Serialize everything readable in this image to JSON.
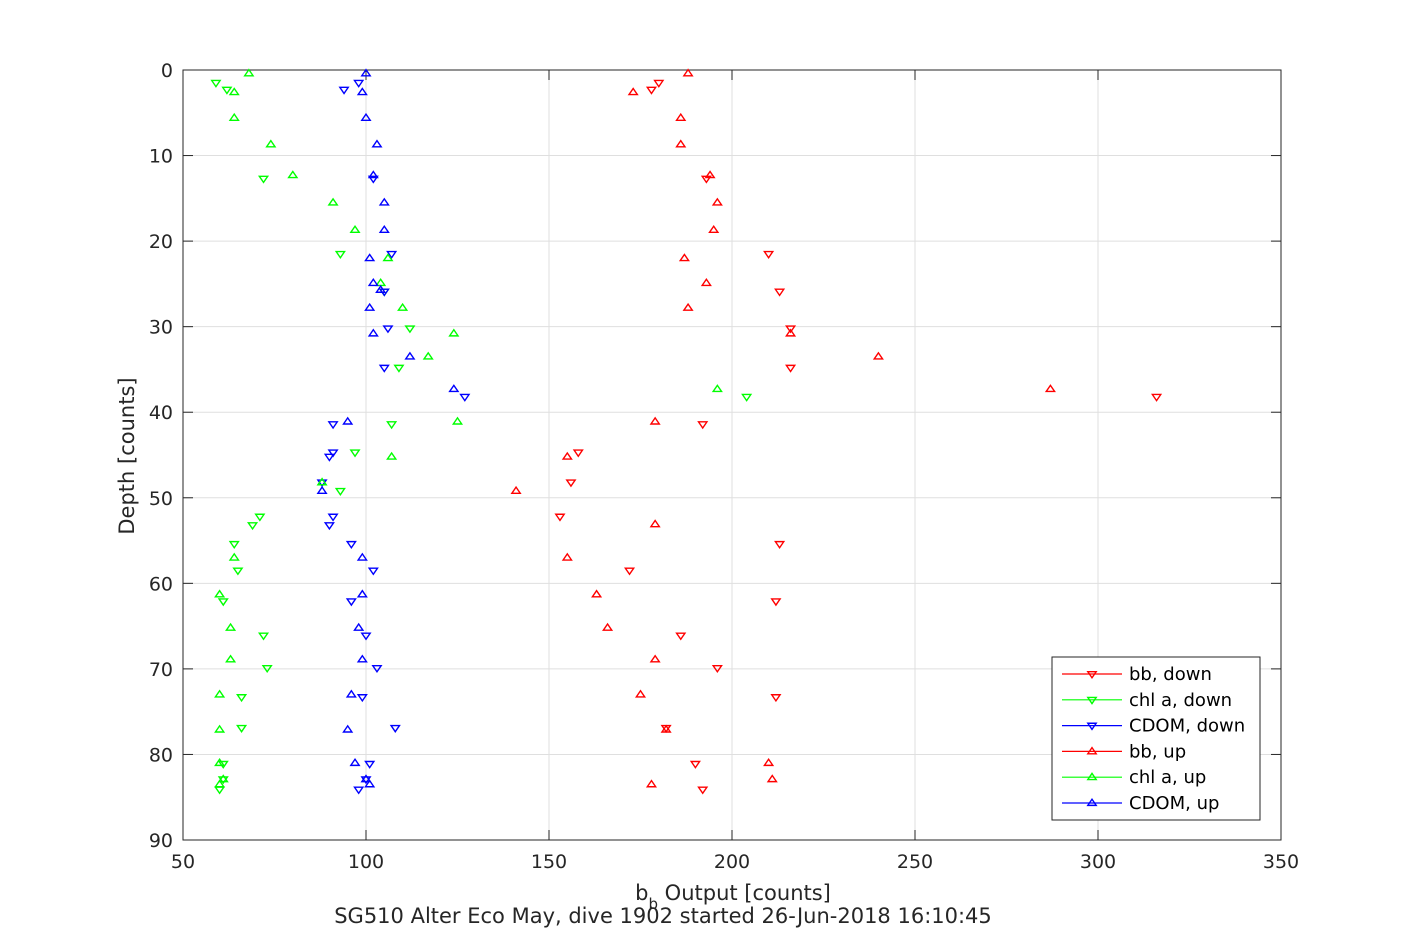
{
  "chart_data": {
    "type": "scatter",
    "title": "",
    "caption": "SG510 Alter Eco May, dive 1902 started 26-Jun-2018 16:10:45",
    "xlabel_main": "b",
    "xlabel_sub": "b",
    "xlabel_rest": " Output [counts]",
    "ylabel": "Depth [counts]",
    "xlim": [
      50,
      350
    ],
    "ylim": [
      0,
      90
    ],
    "y_reversed": true,
    "xticks": [
      50,
      100,
      150,
      200,
      250,
      300,
      350
    ],
    "yticks": [
      0,
      10,
      20,
      30,
      40,
      50,
      60,
      70,
      80,
      90
    ],
    "grid": true,
    "legend_position": "bottom-right",
    "series": [
      {
        "name": "bb, down",
        "color": "#ff0000",
        "marker": "triangle-down",
        "points": [
          [
            180,
            1.5
          ],
          [
            178,
            2.3
          ],
          [
            193,
            12.7
          ],
          [
            210,
            21.5
          ],
          [
            213,
            25.9
          ],
          [
            216,
            30.2
          ],
          [
            216,
            34.8
          ],
          [
            316,
            38.2
          ],
          [
            192,
            41.4
          ],
          [
            158,
            44.7
          ],
          [
            156,
            48.2
          ],
          [
            153,
            52.2
          ],
          [
            213,
            55.4
          ],
          [
            172,
            58.5
          ],
          [
            212,
            62.1
          ],
          [
            186,
            66.1
          ],
          [
            196,
            69.9
          ],
          [
            212,
            73.3
          ],
          [
            182,
            76.9
          ],
          [
            190,
            81.1
          ],
          [
            192,
            84.1
          ]
        ]
      },
      {
        "name": "chl a, down",
        "color": "#00ff00",
        "marker": "triangle-down",
        "points": [
          [
            59,
            1.5
          ],
          [
            62,
            2.3
          ],
          [
            72,
            12.7
          ],
          [
            93,
            21.5
          ],
          [
            105,
            25.9
          ],
          [
            112,
            30.2
          ],
          [
            109,
            34.8
          ],
          [
            204,
            38.2
          ],
          [
            107,
            41.4
          ],
          [
            97,
            44.7
          ],
          [
            93,
            49.2
          ],
          [
            71,
            52.2
          ],
          [
            69,
            53.2
          ],
          [
            64,
            55.4
          ],
          [
            65,
            58.5
          ],
          [
            61,
            62.1
          ],
          [
            72,
            66.1
          ],
          [
            73,
            69.9
          ],
          [
            66,
            73.3
          ],
          [
            66,
            76.9
          ],
          [
            61,
            81.1
          ],
          [
            61,
            82.9
          ],
          [
            60,
            84.1
          ]
        ]
      },
      {
        "name": "CDOM, down",
        "color": "#0000ff",
        "marker": "triangle-down",
        "points": [
          [
            98,
            1.5
          ],
          [
            94,
            2.3
          ],
          [
            102,
            12.7
          ],
          [
            107,
            21.5
          ],
          [
            105,
            25.9
          ],
          [
            106,
            30.2
          ],
          [
            105,
            34.8
          ],
          [
            127,
            38.2
          ],
          [
            91,
            41.4
          ],
          [
            91,
            44.7
          ],
          [
            90,
            45.2
          ],
          [
            88,
            48.2
          ],
          [
            91,
            52.2
          ],
          [
            90,
            53.2
          ],
          [
            96,
            55.4
          ],
          [
            102,
            58.5
          ],
          [
            96,
            62.1
          ],
          [
            100,
            66.1
          ],
          [
            103,
            69.9
          ],
          [
            99,
            73.3
          ],
          [
            108,
            76.9
          ],
          [
            101,
            81.1
          ],
          [
            100,
            82.9
          ],
          [
            98,
            84.1
          ]
        ]
      },
      {
        "name": "bb, up",
        "color": "#ff0000",
        "marker": "triangle-up",
        "points": [
          [
            188,
            0.4
          ],
          [
            173,
            2.6
          ],
          [
            186,
            5.6
          ],
          [
            186,
            8.7
          ],
          [
            194,
            12.3
          ],
          [
            196,
            15.5
          ],
          [
            195,
            18.7
          ],
          [
            187,
            22.0
          ],
          [
            193,
            24.9
          ],
          [
            188,
            27.8
          ],
          [
            216,
            30.8
          ],
          [
            240,
            33.5
          ],
          [
            287,
            37.3
          ],
          [
            179,
            41.1
          ],
          [
            155,
            45.2
          ],
          [
            141,
            49.2
          ],
          [
            179,
            53.1
          ],
          [
            155,
            57.0
          ],
          [
            163,
            61.3
          ],
          [
            166,
            65.2
          ],
          [
            179,
            68.9
          ],
          [
            175,
            73.0
          ],
          [
            182,
            77.1
          ],
          [
            210,
            81.0
          ],
          [
            211,
            82.9
          ],
          [
            178,
            83.5
          ]
        ]
      },
      {
        "name": "chl a, up",
        "color": "#00ff00",
        "marker": "triangle-up",
        "points": [
          [
            68,
            0.4
          ],
          [
            64,
            2.6
          ],
          [
            64,
            5.6
          ],
          [
            74,
            8.7
          ],
          [
            80,
            12.3
          ],
          [
            91,
            15.5
          ],
          [
            97,
            18.7
          ],
          [
            106,
            22.0
          ],
          [
            104,
            24.9
          ],
          [
            110,
            27.8
          ],
          [
            124,
            30.8
          ],
          [
            117,
            33.5
          ],
          [
            196,
            37.3
          ],
          [
            125,
            41.1
          ],
          [
            107,
            45.2
          ],
          [
            88,
            48.2
          ],
          [
            64,
            57.0
          ],
          [
            60,
            61.3
          ],
          [
            63,
            65.2
          ],
          [
            63,
            68.9
          ],
          [
            60,
            73.0
          ],
          [
            60,
            77.1
          ],
          [
            60,
            81.0
          ],
          [
            61,
            82.9
          ],
          [
            60,
            83.5
          ]
        ]
      },
      {
        "name": "CDOM, up",
        "color": "#0000ff",
        "marker": "triangle-up",
        "points": [
          [
            100,
            0.4
          ],
          [
            99,
            2.6
          ],
          [
            100,
            5.6
          ],
          [
            103,
            8.7
          ],
          [
            102,
            12.3
          ],
          [
            105,
            15.5
          ],
          [
            105,
            18.7
          ],
          [
            101,
            22.0
          ],
          [
            102,
            24.9
          ],
          [
            104,
            25.7
          ],
          [
            101,
            27.8
          ],
          [
            102,
            30.8
          ],
          [
            112,
            33.5
          ],
          [
            124,
            37.3
          ],
          [
            95,
            41.1
          ],
          [
            88,
            49.2
          ],
          [
            99,
            57.0
          ],
          [
            99,
            61.3
          ],
          [
            98,
            65.2
          ],
          [
            99,
            68.9
          ],
          [
            96,
            73.0
          ],
          [
            95,
            77.1
          ],
          [
            97,
            81.0
          ],
          [
            100,
            82.9
          ],
          [
            101,
            83.5
          ]
        ]
      }
    ]
  }
}
